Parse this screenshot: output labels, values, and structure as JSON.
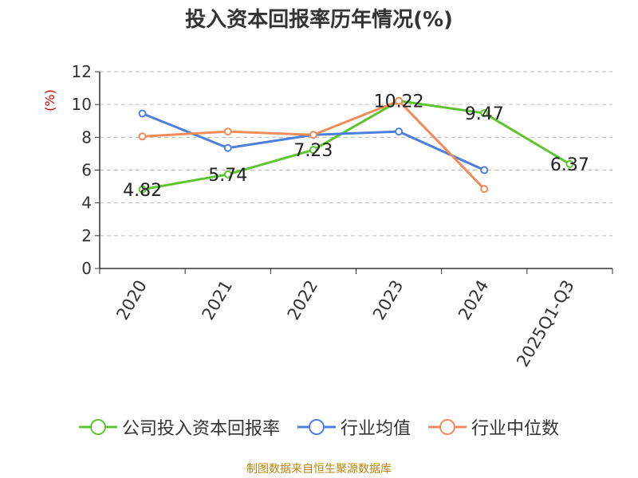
{
  "chart_data": {
    "type": "line",
    "title": "投入资本回报率历年情况(%)",
    "ylabel": "(%)",
    "xlabel": "",
    "categories": [
      "2020",
      "2021",
      "2022",
      "2023",
      "2024",
      "2025Q1-Q3"
    ],
    "ylim": [
      0,
      12
    ],
    "yticks": [
      "0",
      "2",
      "4",
      "6",
      "8",
      "10",
      "12"
    ],
    "grid": true,
    "legend_position": "bottom",
    "series": [
      {
        "name": "公司投入资本回报率",
        "color": "#5ec52e",
        "values": [
          4.82,
          5.74,
          7.23,
          10.22,
          9.47,
          6.37
        ],
        "labels": [
          "4.82",
          "5.74",
          "7.23",
          "10.22",
          "9.47",
          "6.37"
        ]
      },
      {
        "name": "行业均值",
        "color": "#4e7fdc",
        "values": [
          9.45,
          7.35,
          8.15,
          8.35,
          6.0,
          null
        ]
      },
      {
        "name": "行业中位数",
        "color": "#f08c5a",
        "values": [
          8.05,
          8.35,
          8.15,
          10.22,
          4.85,
          null
        ]
      }
    ]
  },
  "source": "制图数据来自恒生聚源数据库"
}
